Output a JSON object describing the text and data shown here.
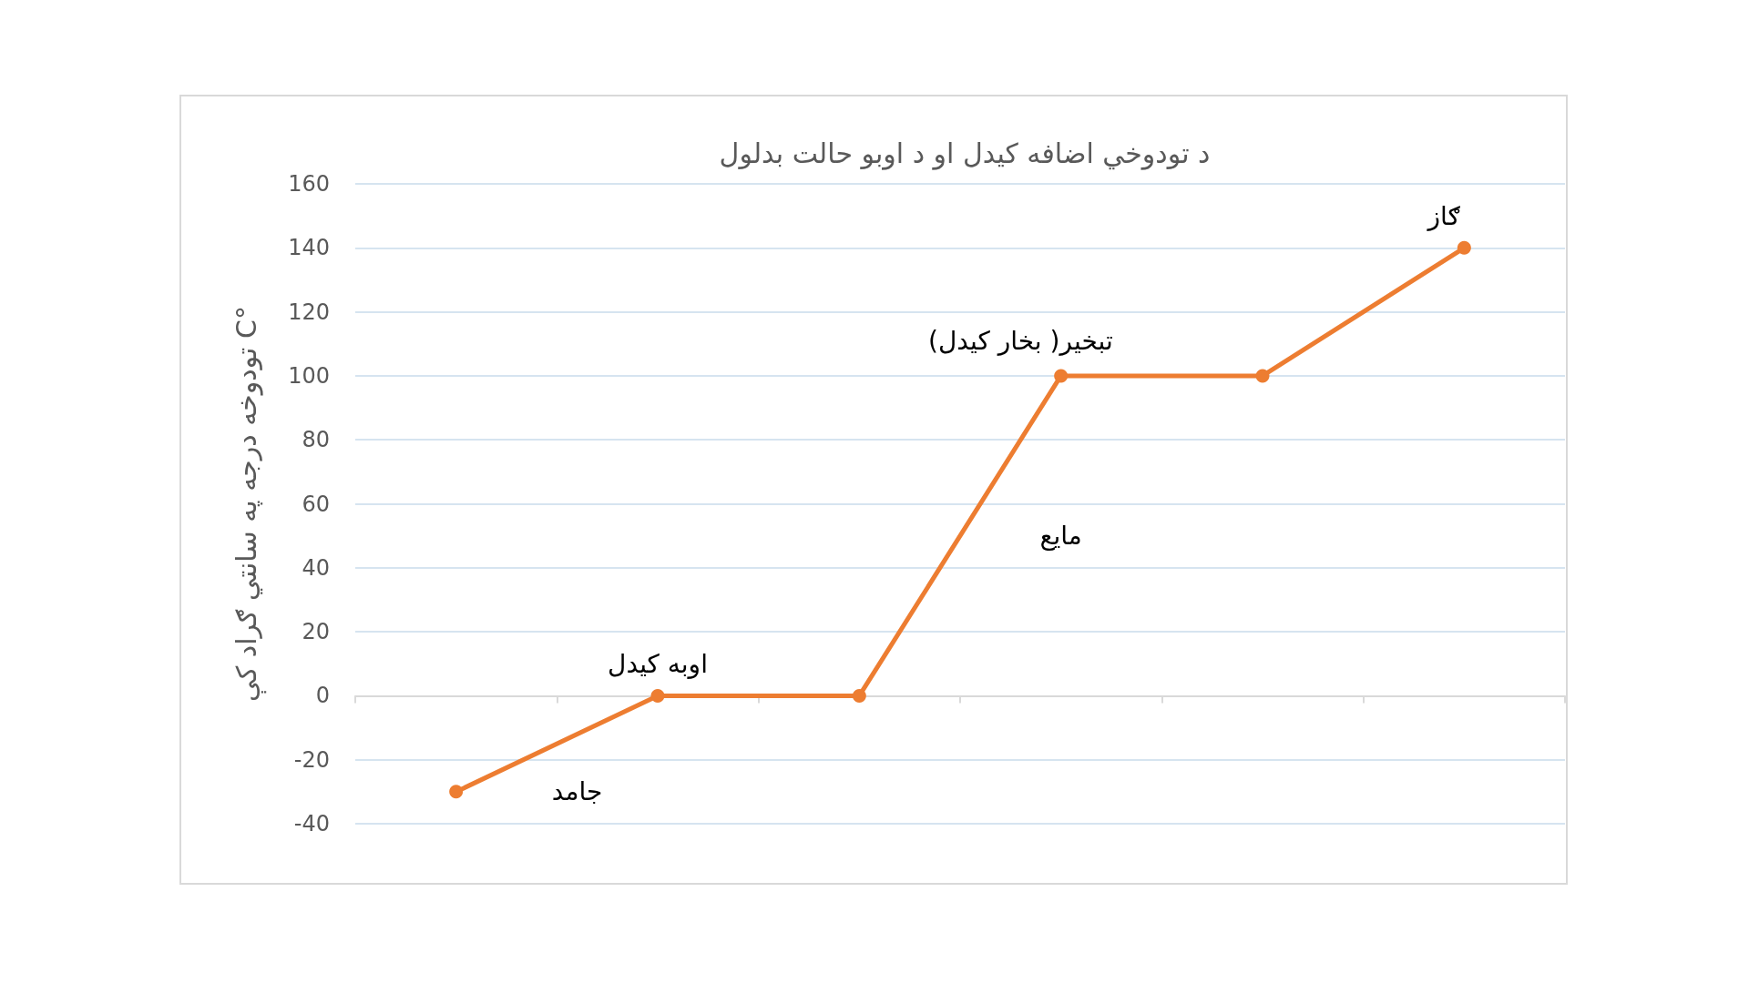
{
  "chart_data": {
    "type": "line",
    "title": "د تودوخي اضافه کيدل او د اوبو حالت بدلول",
    "ylabel": "تودوخه درجه په سانتي ګراد کې C°",
    "categories": [
      null,
      null,
      null,
      null,
      null,
      null
    ],
    "series": [
      {
        "color": "#ed7d31",
        "values": [
          -30,
          0,
          0,
          100,
          100,
          140
        ]
      }
    ],
    "ylim": [
      -40,
      160
    ],
    "yticks": [
      -40,
      -20,
      0,
      20,
      40,
      60,
      80,
      100,
      120,
      140,
      160
    ],
    "grid": "y",
    "marker": "circle",
    "line_style": "solid",
    "annotations": [
      "جامد",
      "اوبه کيدل",
      "تبخير( بخار کيدل)",
      "مايع",
      "ګاز"
    ]
  }
}
